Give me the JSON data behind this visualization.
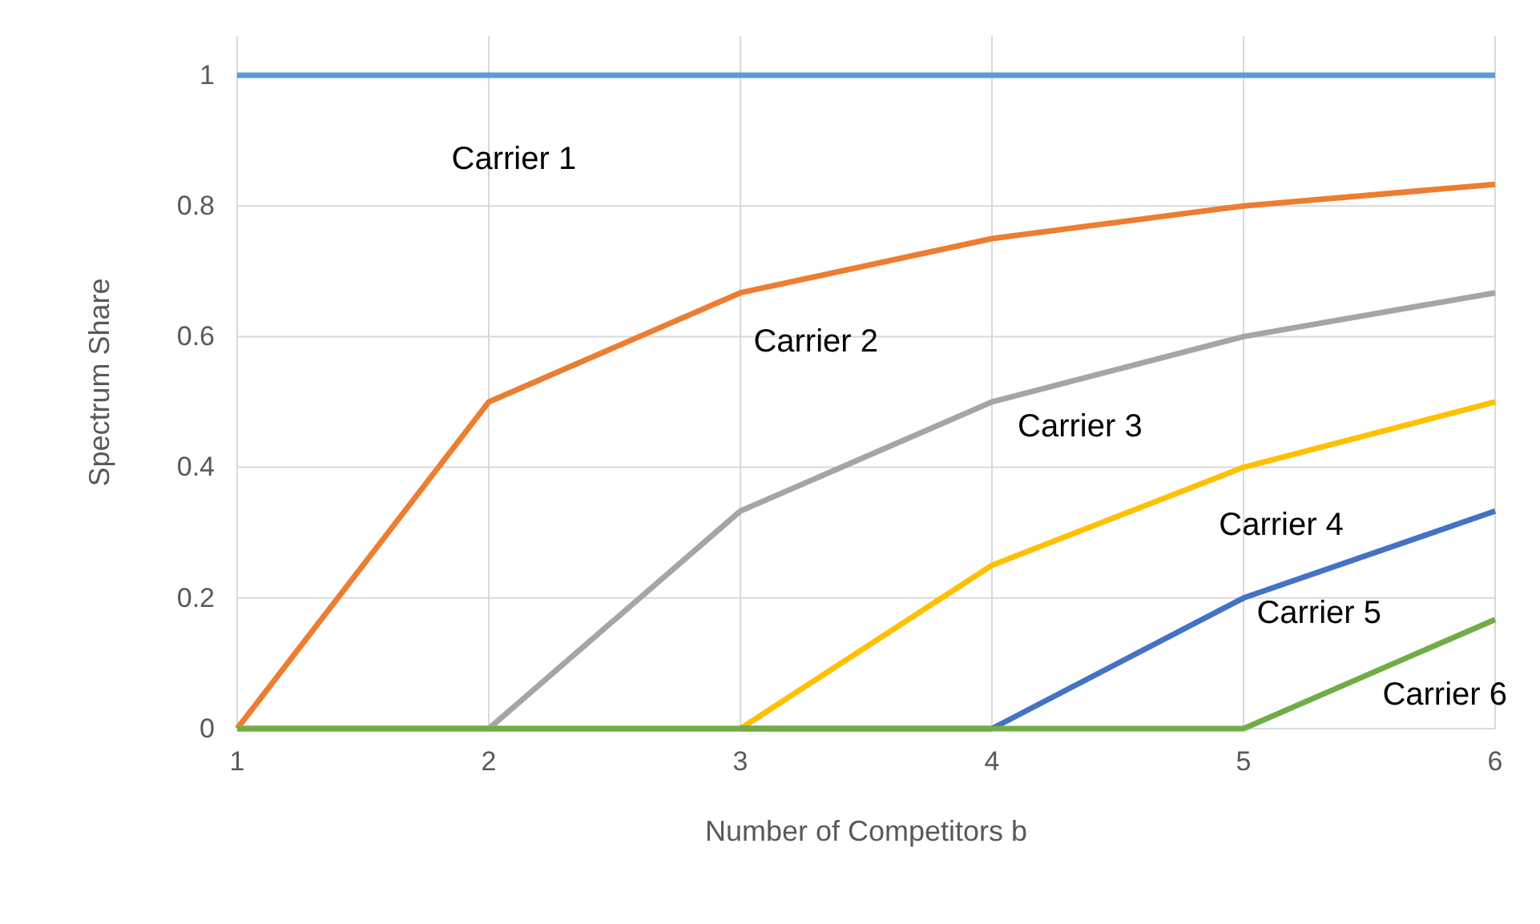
{
  "chart_data": {
    "type": "line",
    "xlabel": "Number of Competitors b",
    "ylabel": "Spectrum Share",
    "x": [
      1,
      2,
      3,
      4,
      5,
      6
    ],
    "series": [
      {
        "name": "Carrier 1",
        "color": "#5b9bd5",
        "values": [
          1,
          1,
          1,
          1,
          1,
          1
        ]
      },
      {
        "name": "Carrier 2",
        "color": "#ed7d31",
        "values": [
          0,
          0.5,
          0.667,
          0.75,
          0.8,
          0.833
        ]
      },
      {
        "name": "Carrier 3",
        "color": "#a5a5a5",
        "values": [
          0,
          0,
          0.333,
          0.5,
          0.6,
          0.667
        ]
      },
      {
        "name": "Carrier 4",
        "color": "#ffc000",
        "values": [
          0,
          0,
          0,
          0.25,
          0.4,
          0.5
        ]
      },
      {
        "name": "Carrier 5",
        "color": "#4472c4",
        "values": [
          null,
          null,
          0,
          0,
          0.2,
          0.333
        ]
      },
      {
        "name": "Carrier 6",
        "color": "#70ad47",
        "values": [
          0,
          0,
          0,
          0,
          0,
          0.167
        ]
      }
    ],
    "xlim": [
      1,
      6
    ],
    "xticks": [
      1,
      2,
      3,
      4,
      5,
      6
    ],
    "ylim": [
      0,
      1.06
    ],
    "yticks": [
      0,
      0.2,
      0.4,
      0.6,
      0.8,
      1
    ],
    "grid": true,
    "legend": false,
    "marker": "none",
    "line_style": "solid"
  }
}
